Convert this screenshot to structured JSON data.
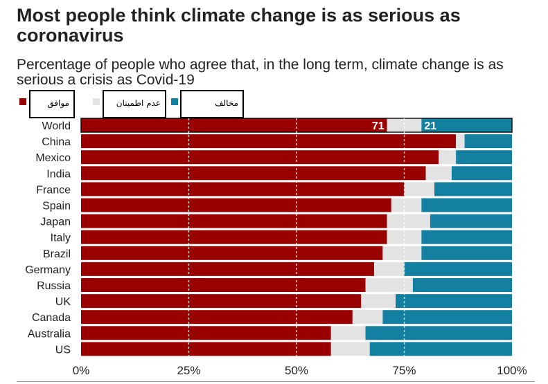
{
  "chart_data": {
    "type": "bar",
    "stacked": true,
    "orientation": "horizontal",
    "title": "Most people think climate change is as serious as coronavirus",
    "subtitle": "Percentage of people who agree that, in the long term, climate change is as serious a crisis as Covid-19",
    "xlim": [
      0,
      100
    ],
    "xticks": [
      0,
      25,
      50,
      75,
      100
    ],
    "xtick_labels": [
      "0%",
      "25%",
      "50%",
      "75%",
      "100%"
    ],
    "categories": [
      "World",
      "China",
      "Mexico",
      "India",
      "France",
      "Spain",
      "Japan",
      "Italy",
      "Brazil",
      "Germany",
      "Russia",
      "UK",
      "Canada",
      "Australia",
      "US"
    ],
    "series": [
      {
        "name": "موافق",
        "color": "#990000",
        "values": [
          71,
          87,
          83,
          80,
          75,
          72,
          71,
          71,
          70,
          68,
          66,
          65,
          63,
          58,
          58
        ]
      },
      {
        "name": "عدم اطمینان",
        "color": "#e3e3e3",
        "values": [
          8,
          2,
          4,
          6,
          7,
          7,
          10,
          8,
          9,
          7,
          11,
          8,
          7,
          8,
          9
        ]
      },
      {
        "name": "مخالف",
        "color": "#1380a1",
        "values": [
          21,
          11,
          13,
          14,
          18,
          21,
          19,
          21,
          21,
          25,
          23,
          27,
          30,
          34,
          33
        ]
      }
    ],
    "data_labels": {
      "World": [
        "71",
        "21"
      ]
    },
    "legend_position": "top-left"
  },
  "colors": {
    "agree": "#990000",
    "unsure": "#e3e3e3",
    "disagree": "#1380a1",
    "grid": "#ffffff",
    "text": "#222222"
  }
}
